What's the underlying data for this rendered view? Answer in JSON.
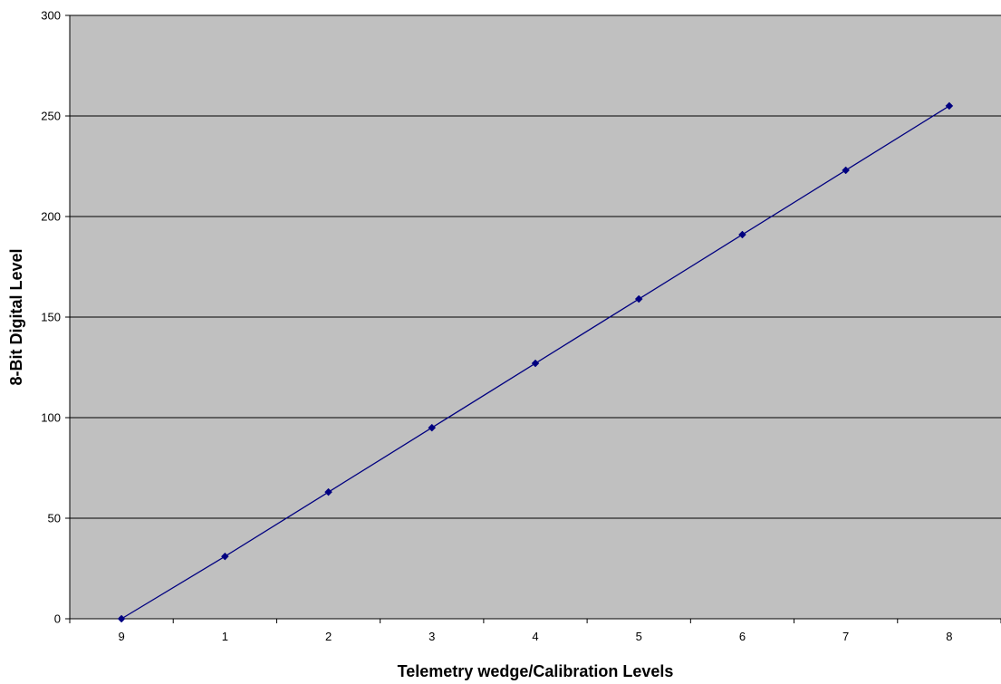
{
  "chart_data": {
    "type": "line",
    "title": "",
    "xlabel": "Telemetry wedge/Calibration Levels",
    "ylabel": "8-Bit Digital Level",
    "categories": [
      "9",
      "1",
      "2",
      "3",
      "4",
      "5",
      "6",
      "7",
      "8"
    ],
    "series": [
      {
        "values": [
          0,
          31,
          63,
          95,
          127,
          159,
          191,
          223,
          255
        ]
      }
    ],
    "ylim": [
      0,
      300
    ],
    "yticks": [
      0,
      50,
      100,
      150,
      200,
      250,
      300
    ],
    "grid": "horizontal",
    "legend": "none",
    "colors": {
      "plot_background": "#c0c0c0",
      "series": "#000080",
      "gridline": "#000000",
      "axis": "#000000"
    }
  }
}
